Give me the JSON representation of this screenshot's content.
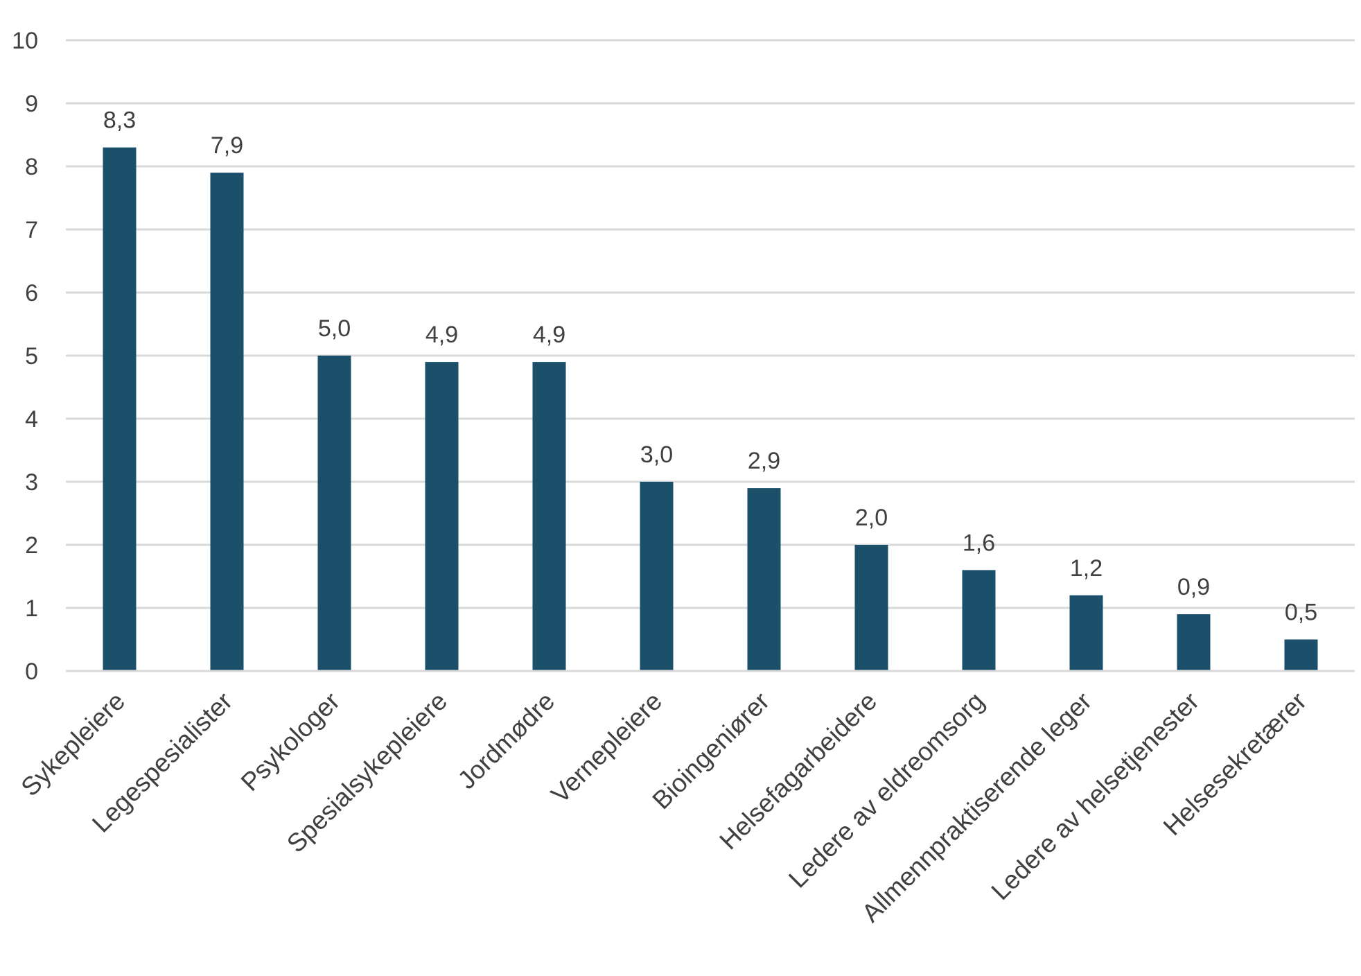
{
  "chart_data": {
    "type": "bar",
    "title": "",
    "xlabel": "",
    "ylabel": "",
    "ylim": [
      0,
      10
    ],
    "yticks": [
      0,
      1,
      2,
      3,
      4,
      5,
      6,
      7,
      8,
      9,
      10
    ],
    "grid": true,
    "legend": "none",
    "bar_color": "#1b4f6a",
    "categories": [
      "Sykepleiere",
      "Legespesialister",
      "Psykologer",
      "Spesialsykepleiere",
      "Jordmødre",
      "Vernepleiere",
      "Bioingeniører",
      "Helsefagarbeidere",
      "Ledere av eldreomsorg",
      "Allmennpraktiserende leger",
      "Ledere av helsetjenester",
      "Helsesekretærer"
    ],
    "values": [
      8.3,
      7.9,
      5.0,
      4.9,
      4.9,
      3.0,
      2.9,
      2.0,
      1.6,
      1.2,
      0.9,
      0.5
    ],
    "value_labels": [
      "8,3",
      "7,9",
      "5,0",
      "4,9",
      "4,9",
      "3,0",
      "2,9",
      "2,0",
      "1,6",
      "1,2",
      "0,9",
      "0,5"
    ]
  }
}
